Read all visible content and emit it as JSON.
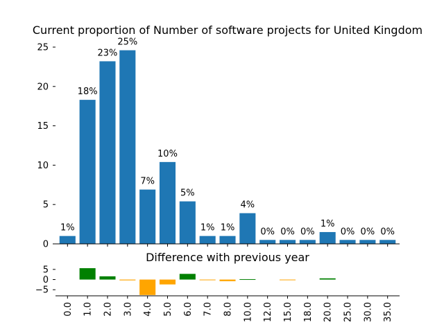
{
  "chart_data": [
    {
      "type": "bar",
      "title": "Current proportion of Number of software projects for United Kingdom",
      "xlabel": "",
      "ylabel": "",
      "ylim": [
        0,
        25
      ],
      "yticks": [
        "0",
        "5",
        "10",
        "15",
        "20",
        "25"
      ],
      "categories": [
        "0.0",
        "1.0",
        "2.0",
        "3.0",
        "4.0",
        "5.0",
        "6.0",
        "7.0",
        "8.0",
        "10.0",
        "12.0",
        "15.0",
        "18.0",
        "20.0",
        "25.0",
        "30.0",
        "35.0"
      ],
      "values": [
        1.0,
        18.3,
        23.2,
        24.6,
        6.9,
        10.4,
        5.4,
        1.0,
        1.0,
        3.9,
        0.5,
        0.5,
        0.5,
        1.5,
        0.5,
        0.5,
        0.5
      ],
      "data_labels": [
        "1%",
        "18%",
        "23%",
        "25%",
        "7%",
        "10%",
        "5%",
        "1%",
        "1%",
        "4%",
        "0%",
        "0%",
        "0%",
        "1%",
        "0%",
        "0%",
        "0%"
      ],
      "bar_color": "#1f77b4",
      "grid": false
    },
    {
      "type": "bar",
      "title": "Difference with previous year",
      "xlabel": "",
      "ylabel": "",
      "ylim": [
        -8,
        7
      ],
      "yticks": [
        "5",
        "0",
        "−5"
      ],
      "ytick_values": [
        5,
        0,
        -5
      ],
      "categories": [
        "0.0",
        "1.0",
        "2.0",
        "3.0",
        "4.0",
        "5.0",
        "6.0",
        "7.0",
        "8.0",
        "10.0",
        "12.0",
        "15.0",
        "18.0",
        "20.0",
        "25.0",
        "30.0",
        "35.0"
      ],
      "values": [
        0,
        5.6,
        1.6,
        -0.4,
        -7.6,
        -2.4,
        2.8,
        -0.3,
        -0.8,
        0.2,
        0,
        -0.3,
        0,
        0.6,
        0,
        0,
        0
      ],
      "positive_color": "#008000",
      "negative_color": "#ffa500",
      "grid": false
    }
  ]
}
